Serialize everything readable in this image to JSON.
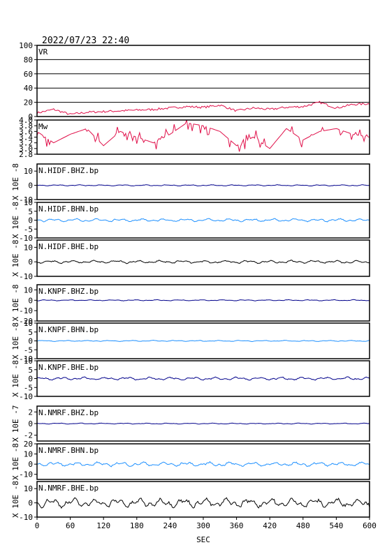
{
  "header": {
    "timestamp": "2022/07/23 22:40"
  },
  "xaxis": {
    "label": "SEC",
    "ticks": [
      "0",
      "60",
      "120",
      "180",
      "240",
      "300",
      "360",
      "420",
      "480",
      "540",
      "600"
    ],
    "range": [
      0,
      600
    ]
  },
  "colors": {
    "frame": "#000000",
    "vr": "#e0104a",
    "mw": "#e0104a",
    "dark": "#00008b",
    "light": "#1e90ff",
    "black": "#000000"
  },
  "chart_data": [
    {
      "type": "line",
      "title": "VR",
      "ylim": [
        0,
        100
      ],
      "ticks": [
        "100",
        "80",
        "60",
        "40",
        "20",
        "0"
      ],
      "grid": true,
      "x": [
        0,
        30,
        60,
        90,
        120,
        150,
        180,
        210,
        240,
        270,
        300,
        330,
        360,
        390,
        420,
        450,
        480,
        510,
        540,
        570,
        600
      ],
      "values": [
        5,
        10,
        3,
        6,
        7,
        8,
        9,
        10,
        12,
        14,
        13,
        16,
        8,
        12,
        10,
        13,
        14,
        20,
        12,
        17,
        18
      ]
    },
    {
      "type": "line",
      "title": "Mw",
      "ylim": [
        2.8,
        4.0
      ],
      "ticks": [
        "4.0",
        "3.8",
        "3.6",
        "3.4",
        "3.2",
        "3.0",
        "2.8"
      ],
      "x": [
        0,
        30,
        60,
        90,
        120,
        150,
        180,
        210,
        240,
        270,
        300,
        330,
        360,
        390,
        420,
        450,
        480,
        510,
        540,
        570,
        600
      ],
      "values": [
        3.6,
        3.2,
        3.5,
        3.7,
        3.1,
        3.6,
        3.4,
        3.2,
        3.5,
        3.9,
        3.8,
        3.6,
        3.1,
        3.4,
        3.0,
        3.7,
        3.3,
        3.6,
        3.7,
        3.5,
        3.4
      ]
    },
    {
      "type": "line",
      "title": "N.HIDF.BHZ.bp",
      "ylabel": "X 10E -8",
      "ylim": [
        -10,
        15
      ],
      "ticks": [
        "10",
        "0",
        "-10"
      ],
      "amp": 0.4,
      "color": "dark"
    },
    {
      "type": "line",
      "title": "N.HIDF.BHN.bp",
      "ylabel": "X 10E -8",
      "ylim": [
        -10,
        10
      ],
      "ticks": [
        "10",
        "5",
        "0",
        "-5",
        "-10"
      ],
      "amp": 0.8,
      "color": "light"
    },
    {
      "type": "line",
      "title": "N.HIDF.BHE.bp",
      "ylabel": "X 10E -8",
      "ylim": [
        -10,
        15
      ],
      "ticks": [
        "10",
        "0",
        "-10"
      ],
      "amp": 1.0,
      "color": "black"
    },
    {
      "type": "line",
      "title": "N.KNPF.BHZ.bp",
      "ylabel": "X 10E -8",
      "ylim": [
        -20,
        15
      ],
      "ticks": [
        "10",
        "0",
        "-10",
        "-20"
      ],
      "amp": 0.5,
      "color": "dark"
    },
    {
      "type": "line",
      "title": "N.KNPF.BHN.bp",
      "ylabel": "X 10E -8",
      "ylim": [
        -10,
        10
      ],
      "ticks": [
        "10",
        "5",
        "0",
        "-5",
        "-10"
      ],
      "amp": 0.3,
      "color": "light"
    },
    {
      "type": "line",
      "title": "N.KNPF.BHE.bp",
      "ylabel": "X 10E -8",
      "ylim": [
        -10,
        10
      ],
      "ticks": [
        "10",
        "5",
        "0",
        "-5",
        "-10"
      ],
      "amp": 0.8,
      "color": "dark"
    },
    {
      "type": "line",
      "title": "N.NMRF.BHZ.bp",
      "ylabel": "X 10E -7",
      "ylim": [
        -3,
        3
      ],
      "ticks": [
        "2",
        "0",
        "-2"
      ],
      "amp": 0.08,
      "color": "dark"
    },
    {
      "type": "line",
      "title": "N.NMRF.BHN.bp",
      "ylabel": "X 10E -8",
      "ylim": [
        -15,
        20
      ],
      "ticks": [
        "20",
        "10",
        "0",
        "-10"
      ],
      "amp": 2.0,
      "color": "light"
    },
    {
      "type": "line",
      "title": "N.NMRF.BHE.bp",
      "ylabel": "X 10E -8",
      "ylim": [
        -10,
        15
      ],
      "ticks": [
        "10",
        "0",
        "-10"
      ],
      "amp": 3.0,
      "color": "black"
    }
  ]
}
